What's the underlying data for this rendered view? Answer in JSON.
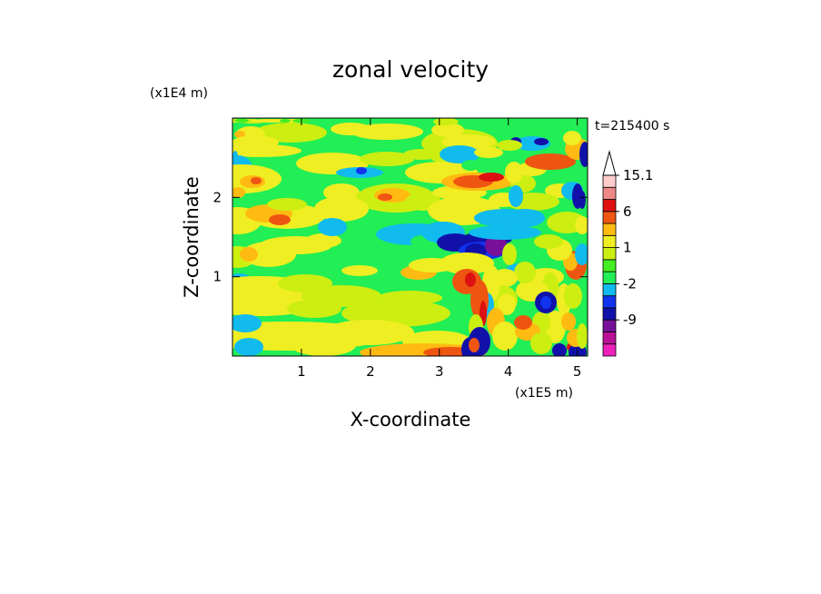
{
  "chart_data": {
    "type": "heatmap",
    "title": "zonal velocity",
    "xlabel": "X-coordinate",
    "ylabel": "Z-coordinate",
    "x_units": "(x1E5 m)",
    "y_units": "(x1E4 m)",
    "time_label": "t=215400 s",
    "xlim": [
      0,
      5.15
    ],
    "ylim": [
      0,
      3.0
    ],
    "x_ticks": [
      "1",
      "2",
      "3",
      "4",
      "5"
    ],
    "y_ticks": [
      "1",
      "2"
    ],
    "colorbar": {
      "levels": [
        -15,
        -12,
        -9,
        -6,
        -4,
        -2,
        -1,
        0,
        1,
        2,
        4,
        6,
        9,
        12,
        15.1
      ],
      "colors": [
        "#ee22bb",
        "#bb1199",
        "#771199",
        "#1111aa",
        "#1133ee",
        "#11bbee",
        "#22ee55",
        "#44ee22",
        "#ccee11",
        "#eeee22",
        "#ffbb11",
        "#ee5511",
        "#dd1111",
        "#ee8888",
        "#ffcccc"
      ],
      "labels": [
        "15.1",
        "6",
        "1",
        "-2",
        "-9"
      ],
      "extend": "max"
    }
  }
}
